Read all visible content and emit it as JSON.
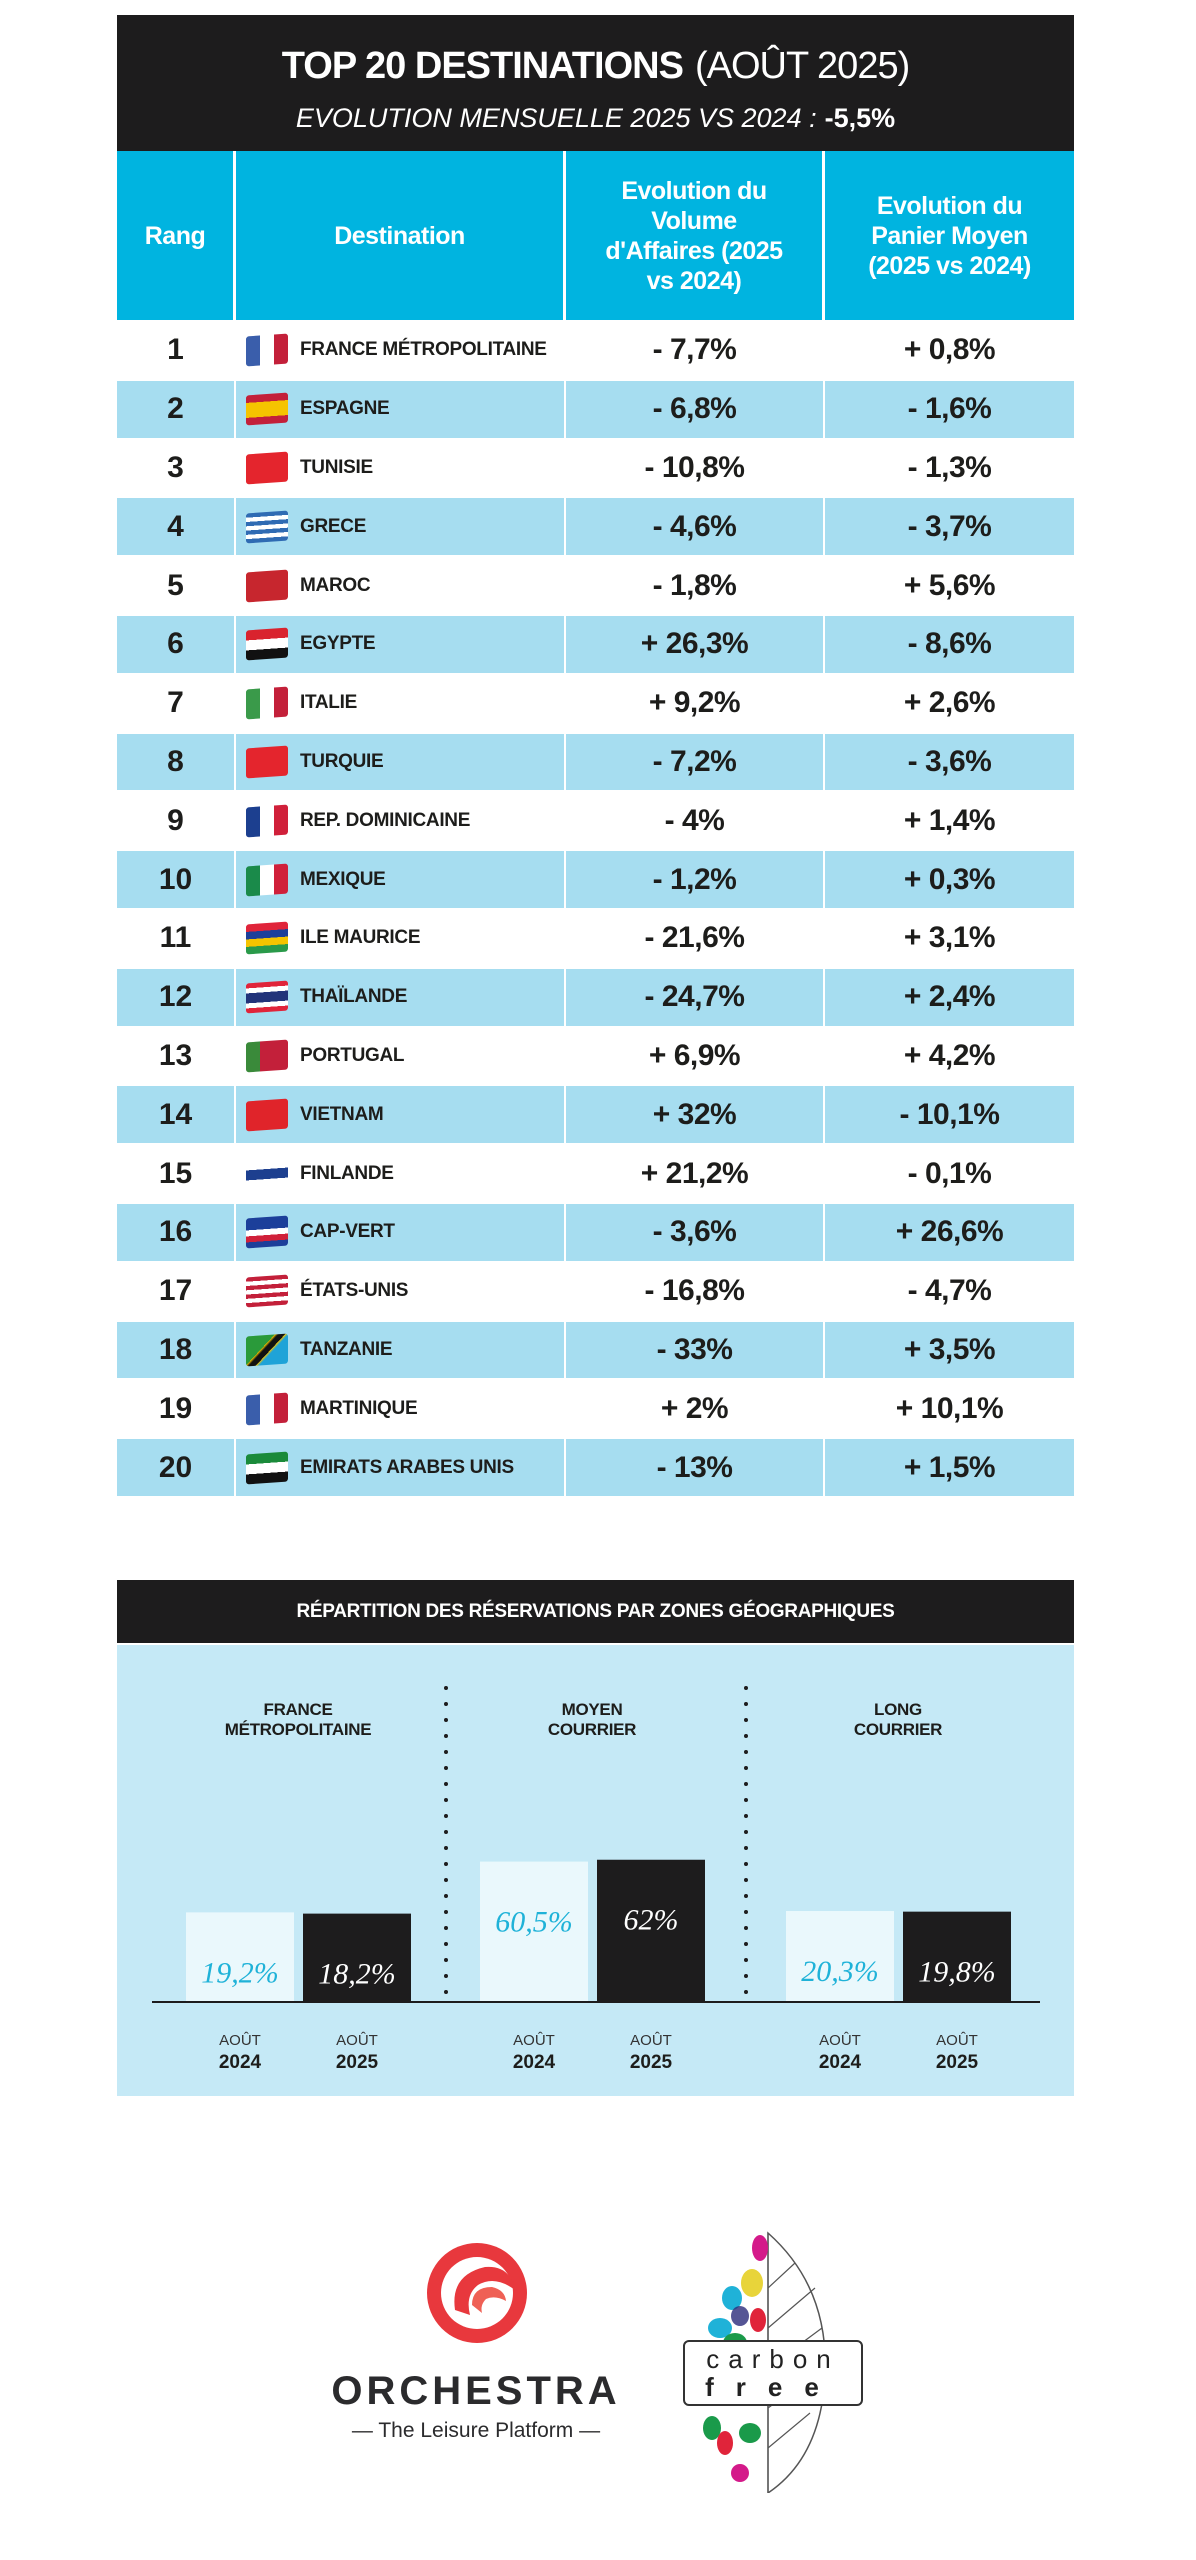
{
  "header": {
    "title_bold": "TOP 20 DESTINATIONS",
    "title_light": "(AOÛT 2025)",
    "subtitle": "EVOLUTION MENSUELLE 2025 VS 2024 :",
    "subtitle_value": "-5,5%"
  },
  "table": {
    "columns": [
      "Rang",
      "Destination",
      "Evolution du Volume d'Affaires (2025 vs 2024)",
      "Evolution du Panier Moyen (2025 vs 2024)"
    ],
    "rows": [
      {
        "rank": "1",
        "name": "FRANCE MÉTROPOLITAINE",
        "volume": "- 7,7%",
        "panier": "+ 0,8%",
        "flag": {
          "dir": "v",
          "colors": [
            "#3a5eab",
            "#ffffff",
            "#c3203a"
          ]
        }
      },
      {
        "rank": "2",
        "name": "ESPAGNE",
        "volume": "- 6,8%",
        "panier": "- 1,6%",
        "flag": {
          "dir": "h",
          "colors": [
            "#c3203a",
            "#f5c400",
            "#f5c400",
            "#c3203a"
          ]
        }
      },
      {
        "rank": "3",
        "name": "TUNISIE",
        "volume": "- 10,8%",
        "panier": "- 1,3%",
        "flag": {
          "dir": "h",
          "colors": [
            "#e4252d"
          ]
        }
      },
      {
        "rank": "4",
        "name": "GRECE",
        "volume": "- 4,6%",
        "panier": "- 3,7%",
        "flag": {
          "dir": "h",
          "colors": [
            "#2f6bb3",
            "#ffffff",
            "#2f6bb3",
            "#ffffff",
            "#2f6bb3",
            "#ffffff",
            "#2f6bb3"
          ]
        }
      },
      {
        "rank": "5",
        "name": "MAROC",
        "volume": "- 1,8%",
        "panier": "+ 5,6%",
        "flag": {
          "dir": "h",
          "colors": [
            "#c7262e"
          ]
        }
      },
      {
        "rank": "6",
        "name": "EGYPTE",
        "volume": "+ 26,3%",
        "panier": "- 8,6%",
        "flag": {
          "dir": "h",
          "colors": [
            "#d9232e",
            "#ffffff",
            "#111111"
          ]
        }
      },
      {
        "rank": "7",
        "name": "ITALIE",
        "volume": "+ 9,2%",
        "panier": "+ 2,6%",
        "flag": {
          "dir": "v",
          "colors": [
            "#3a9a4a",
            "#ffffff",
            "#c3203a"
          ]
        }
      },
      {
        "rank": "8",
        "name": "TURQUIE",
        "volume": "- 7,2%",
        "panier": "- 3,6%",
        "flag": {
          "dir": "h",
          "colors": [
            "#e4252d"
          ]
        }
      },
      {
        "rank": "9",
        "name": "REP. DOMINICAINE",
        "volume": "- 4%",
        "panier": "+ 1,4%",
        "flag": {
          "dir": "v",
          "colors": [
            "#1c3f8f",
            "#ffffff",
            "#d0203a"
          ]
        }
      },
      {
        "rank": "10",
        "name": "MEXIQUE",
        "volume": "- 1,2%",
        "panier": "+ 0,3%",
        "flag": {
          "dir": "v",
          "colors": [
            "#1a8a4a",
            "#ffffff",
            "#d0203a"
          ]
        }
      },
      {
        "rank": "11",
        "name": "ILE MAURICE",
        "volume": "- 21,6%",
        "panier": "+ 3,1%",
        "flag": {
          "dir": "h",
          "colors": [
            "#e0243a",
            "#1c3f9a",
            "#f5c400",
            "#2a9a4a"
          ]
        }
      },
      {
        "rank": "12",
        "name": "THAÏLANDE",
        "volume": "- 24,7%",
        "panier": "+ 2,4%",
        "flag": {
          "dir": "h",
          "colors": [
            "#e0243a",
            "#ffffff",
            "#22337a",
            "#22337a",
            "#ffffff",
            "#e0243a"
          ]
        }
      },
      {
        "rank": "13",
        "name": "PORTUGAL",
        "volume": "+ 6,9%",
        "panier": "+ 4,2%",
        "flag": {
          "dir": "v",
          "colors": [
            "#3a8a3a",
            "#c3203a",
            "#c3203a"
          ]
        }
      },
      {
        "rank": "14",
        "name": "VIETNAM",
        "volume": "+ 32%",
        "panier": "- 10,1%",
        "flag": {
          "dir": "h",
          "colors": [
            "#e0242a"
          ]
        }
      },
      {
        "rank": "15",
        "name": "FINLANDE",
        "volume": "+ 21,2%",
        "panier": "- 0,1%",
        "flag": {
          "dir": "h",
          "colors": [
            "#ffffff",
            "#1d3f8f",
            "#ffffff"
          ]
        }
      },
      {
        "rank": "16",
        "name": "CAP-VERT",
        "volume": "- 3,6%",
        "panier": "+ 26,6%",
        "flag": {
          "dir": "h",
          "colors": [
            "#1c3f9a",
            "#1c3f9a",
            "#ffffff",
            "#d0203a",
            "#1c3f9a"
          ]
        }
      },
      {
        "rank": "17",
        "name": "ÉTATS-UNIS",
        "volume": "- 16,8%",
        "panier": "- 4,7%",
        "flag": {
          "dir": "h",
          "colors": [
            "#c3203a",
            "#ffffff",
            "#c3203a",
            "#ffffff",
            "#c3203a",
            "#ffffff",
            "#c3203a"
          ]
        }
      },
      {
        "rank": "18",
        "name": "TANZANIE",
        "volume": "- 33%",
        "panier": "+ 3,5%",
        "flag": {
          "dir": "d",
          "colors": [
            "#2a9a3a",
            "#111111",
            "#1fa3d8"
          ]
        }
      },
      {
        "rank": "19",
        "name": "MARTINIQUE",
        "volume": "+ 2%",
        "panier": "+ 10,1%",
        "flag": {
          "dir": "v",
          "colors": [
            "#3a5eab",
            "#ffffff",
            "#c3203a"
          ]
        }
      },
      {
        "rank": "20",
        "name": "EMIRATS ARABES UNIS",
        "volume": "- 13%",
        "panier": "+ 1,5%",
        "flag": {
          "dir": "h",
          "colors": [
            "#1a8a3a",
            "#ffffff",
            "#111111"
          ]
        }
      }
    ]
  },
  "chart_data": {
    "type": "bar",
    "title": "RÉPARTITION DES RÉSERVATIONS PAR ZONES GÉOGRAPHIQUES",
    "categories": [
      "FRANCE MÉTROPOLITAINE",
      "MOYEN COURRIER",
      "LONG COURRIER"
    ],
    "category_lines": [
      [
        "FRANCE",
        "MÉTROPOLITAINE"
      ],
      [
        "MOYEN",
        "COURRIER"
      ],
      [
        "LONG",
        "COURRIER"
      ]
    ],
    "series": [
      {
        "name": "AOÛT 2024",
        "month": "AOÛT",
        "year": "2024",
        "color": "#eaf8fc",
        "label_color": "#1fb2d8",
        "values": [
          19.2,
          60.5,
          20.3
        ],
        "labels": [
          "19,2%",
          "60,5%",
          "20,3%"
        ]
      },
      {
        "name": "AOÛT 2025",
        "month": "AOÛT",
        "year": "2025",
        "color": "#1d1c1d",
        "label_color": "#ffffff",
        "values": [
          18.2,
          62,
          19.8
        ],
        "labels": [
          "18,2%",
          "62%",
          "19,8%"
        ]
      }
    ],
    "unit": "%"
  },
  "footer": {
    "orchestra_name": "ORCHESTRA",
    "orchestra_tagline": "— The Leisure Platform —",
    "carbon_line1": "carbon",
    "carbon_line2": "free"
  }
}
